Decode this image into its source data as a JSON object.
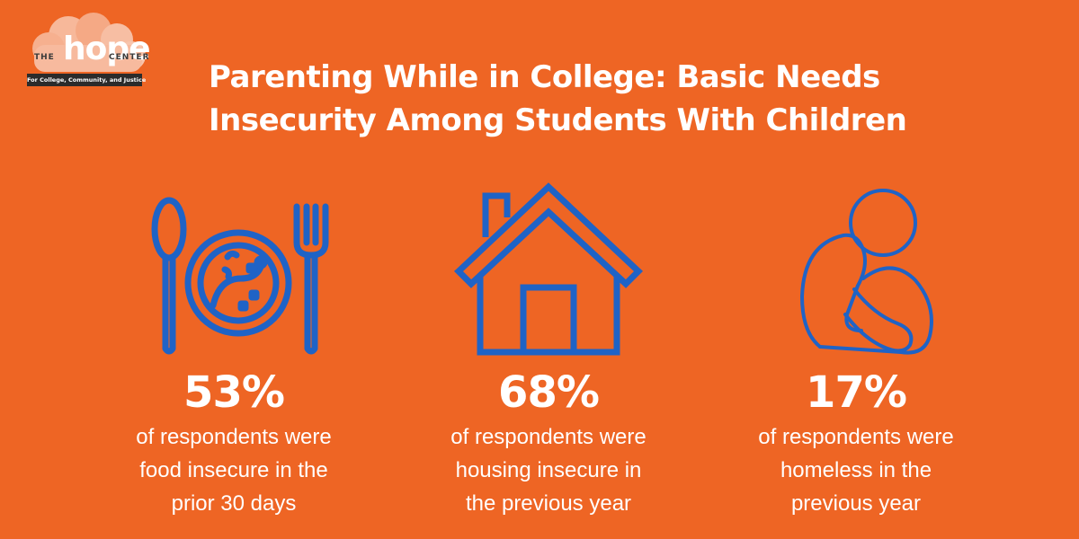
{
  "logo": {
    "the": "THE",
    "hope": "hope",
    "center": "CENTER",
    "tagline": "For College, Community, and Justice"
  },
  "title": {
    "line1": "Parenting While in College: Basic Needs",
    "line2": "Insecurity Among Students With Children"
  },
  "stats": [
    {
      "icon": "plate-with-utensils-icon",
      "value": "53%",
      "lines": [
        "of respondents were",
        "food insecure in the",
        "prior 30 days"
      ]
    },
    {
      "icon": "house-icon",
      "value": "68%",
      "lines": [
        "of respondents were",
        "housing insecure in",
        "the previous year"
      ]
    },
    {
      "icon": "person-hugging-knees-icon",
      "value": "17%",
      "lines": [
        "of respondents were",
        "homeless in the",
        "previous year"
      ]
    }
  ],
  "colors": {
    "background": "#EE6524",
    "icon_stroke": "#1F63C6",
    "text": "#FFFFFF"
  }
}
